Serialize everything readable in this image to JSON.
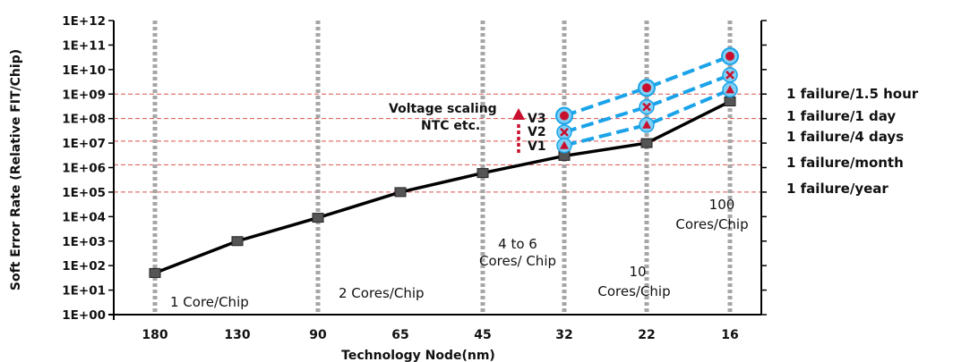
{
  "chart_data": {
    "type": "line",
    "xlabel": "Technology Node(nm)",
    "ylabel": "Soft Error Rate (Relative FIT/Chip)",
    "y_scale": "log",
    "ylim": [
      1,
      1000000000000
    ],
    "y_tick_labels": [
      "1E+00",
      "1E+01",
      "1E+02",
      "1E+03",
      "1E+04",
      "1E+05",
      "1E+06",
      "1E+07",
      "1E+08",
      "1E+09",
      "1E+10",
      "1E+11",
      "1E+12"
    ],
    "categories": [
      "180",
      "130",
      "90",
      "65",
      "45",
      "32",
      "22",
      "16"
    ],
    "vertical_grid": "dotted gray at 180, 90, 45, 32, 22, 16",
    "baseline": {
      "marker": "square",
      "color": "#000000",
      "points": [
        {
          "x": "180",
          "y": 50
        },
        {
          "x": "130",
          "y": 1000
        },
        {
          "x": "90",
          "y": 9000
        },
        {
          "x": "65",
          "y": 100000
        },
        {
          "x": "45",
          "y": 600000
        },
        {
          "x": "32",
          "y": 3000000
        },
        {
          "x": "22",
          "y": 10000000
        },
        {
          "x": "16",
          "y": 500000000
        }
      ]
    },
    "series": [
      {
        "name": "V3",
        "marker": "circle",
        "color": "#1aa3e8",
        "marker_color": "#c8102e",
        "points": [
          {
            "x": "32",
            "y": 130000000
          },
          {
            "x": "22",
            "y": 1800000000
          },
          {
            "x": "16",
            "y": 35000000000
          }
        ]
      },
      {
        "name": "V2",
        "marker": "x",
        "color": "#1aa3e8",
        "marker_color": "#c8102e",
        "points": [
          {
            "x": "32",
            "y": 28000000
          },
          {
            "x": "22",
            "y": 300000000
          },
          {
            "x": "16",
            "y": 6000000000
          }
        ]
      },
      {
        "name": "V1",
        "marker": "triangle",
        "color": "#1aa3e8",
        "marker_color": "#c8102e",
        "points": [
          {
            "x": "32",
            "y": 8000000
          },
          {
            "x": "22",
            "y": 55000000
          },
          {
            "x": "16",
            "y": 1500000000
          }
        ]
      }
    ],
    "reference_lines": [
      {
        "y": 1000000000,
        "label": "1 failure/1.5 hour"
      },
      {
        "y": 100000000,
        "label": "1 failure/1 day"
      },
      {
        "y": 12000000,
        "label": "1 failure/4 days"
      },
      {
        "y": 1300000,
        "label": "1 failure/month"
      },
      {
        "y": 100000,
        "label": "1 failure/year"
      }
    ],
    "region_annotations": [
      {
        "lines": [
          "1 Core/Chip"
        ]
      },
      {
        "lines": [
          "2 Cores/Chip"
        ]
      },
      {
        "lines": [
          "4 to 6",
          "Cores/ Chip"
        ]
      },
      {
        "lines": [
          "10",
          "Cores/Chip"
        ]
      },
      {
        "lines": [
          "100",
          "Cores/Chip"
        ]
      }
    ],
    "voltage_annotation": [
      "Voltage scaling",
      "NTC etc."
    ]
  }
}
